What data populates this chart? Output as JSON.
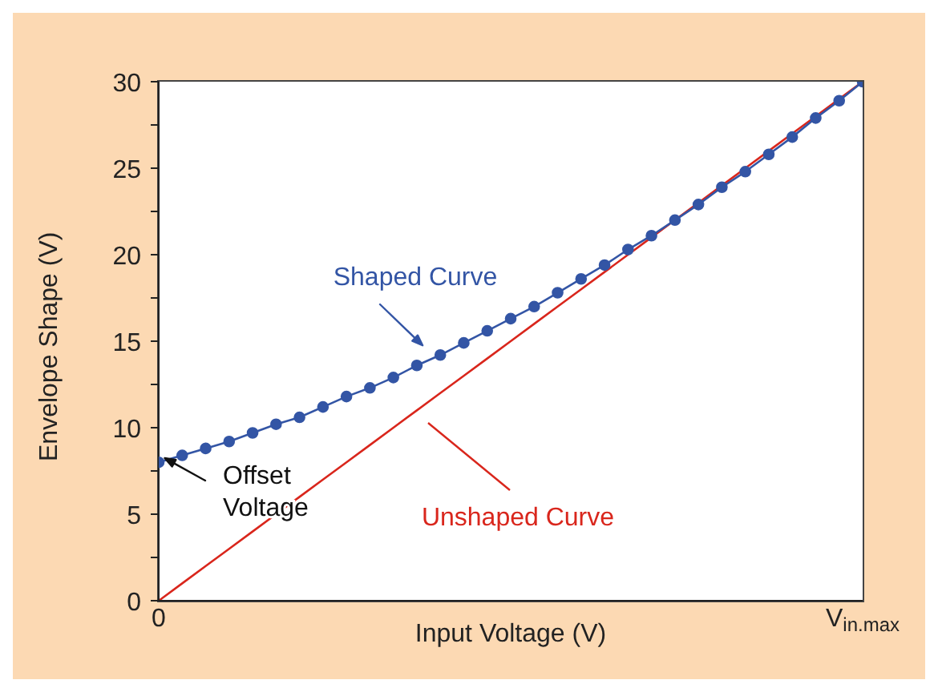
{
  "chart_data": {
    "type": "line",
    "xlabel": "Input Voltage (V)",
    "ylabel": "Envelope Shape (V)",
    "categories": [
      "0",
      null,
      null,
      null,
      null,
      null,
      null,
      null,
      null,
      null,
      null,
      null,
      null,
      null,
      null,
      null,
      null,
      null,
      null,
      null,
      null,
      null,
      null,
      null,
      null,
      null,
      null,
      null,
      null,
      null,
      "V$_{in.max}$"
    ],
    "ylim": [
      0,
      30
    ],
    "yticks": [
      0,
      {
        "value": 2.5,
        "label": null
      },
      5,
      {
        "value": 7.5,
        "label": null
      },
      10,
      {
        "value": 12.5,
        "label": null
      },
      15,
      {
        "value": 17.5,
        "label": null
      },
      20,
      {
        "value": 22.5,
        "label": null
      },
      25,
      {
        "value": 27.5,
        "label": null
      },
      30
    ],
    "series": [
      {
        "color": "#d9261c",
        "marker": "none",
        "values": [
          0,
          1,
          2,
          3,
          4,
          5,
          6,
          7,
          8,
          9,
          10,
          11,
          12,
          13,
          14,
          15,
          16,
          17,
          18,
          19,
          20,
          21,
          22,
          23,
          24,
          25,
          26,
          27,
          28,
          29,
          30
        ]
      },
      {
        "color": "#3355a5",
        "marker": "circle",
        "values": [
          8,
          8.4,
          8.8,
          9.2,
          9.7,
          10.2,
          10.6,
          11.2,
          11.8,
          12.3,
          12.9,
          13.6,
          14.2,
          14.9,
          15.6,
          16.3,
          17,
          17.8,
          18.6,
          19.4,
          20.3,
          21.1,
          22,
          22.9,
          23.9,
          24.8,
          25.8,
          26.8,
          27.9,
          28.9,
          30
        ]
      }
    ],
    "annotations": [
      "Shaped Curve",
      "Unshaped Curve",
      "Offset Voltage"
    ]
  }
}
